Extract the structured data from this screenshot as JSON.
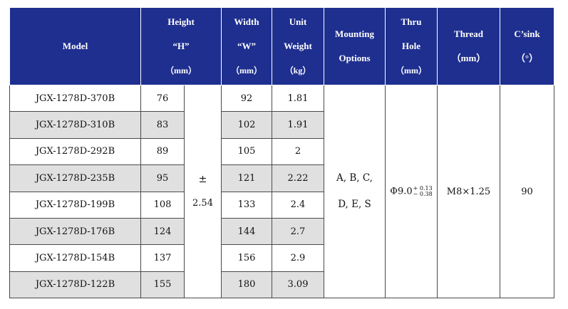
{
  "header": {
    "model": "Model",
    "height": [
      "Height",
      "“H”",
      "（mm）"
    ],
    "width": [
      "Width",
      "“W”",
      "（mm）"
    ],
    "unit_weight": [
      "Unit",
      "Weight",
      "（kg）"
    ],
    "mounting": [
      "Mounting",
      "Options"
    ],
    "thru_hole": [
      "Thru",
      "Hole",
      "（mm）"
    ],
    "thread": [
      "Thread",
      "（mm）"
    ],
    "csink": [
      "C’sink",
      "（°）"
    ]
  },
  "rows": [
    {
      "model": "JGX-1278D-370B",
      "height": "76",
      "width": "92",
      "weight": "1.81"
    },
    {
      "model": "JGX-1278D-310B",
      "height": "83",
      "width": "102",
      "weight": "1.91"
    },
    {
      "model": "JGX-1278D-292B",
      "height": "89",
      "width": "105",
      "weight": "2"
    },
    {
      "model": "JGX-1278D-235B",
      "height": "95",
      "width": "121",
      "weight": "2.22"
    },
    {
      "model": "JGX-1278D-199B",
      "height": "108",
      "width": "133",
      "weight": "2.4"
    },
    {
      "model": "JGX-1278D-176B",
      "height": "124",
      "width": "144",
      "weight": "2.7"
    },
    {
      "model": "JGX-1278D-154B",
      "height": "137",
      "width": "156",
      "weight": "2.9"
    },
    {
      "model": "JGX-1278D-122B",
      "height": "155",
      "width": "180",
      "weight": "3.09"
    }
  ],
  "shared": {
    "tolerance_sign": "±",
    "tolerance_value": "2.54",
    "mounting": [
      "A, B, C,",
      "D, E, S"
    ],
    "thru_hole_base": "Φ9.0",
    "thru_hole_upper": "+ 0.13",
    "thru_hole_lower": "− 0.38",
    "thread": "M8×1.25",
    "csink": "90"
  },
  "colors": {
    "header_bg": "#1f2f8f",
    "stripe": "#e0e0e0"
  }
}
